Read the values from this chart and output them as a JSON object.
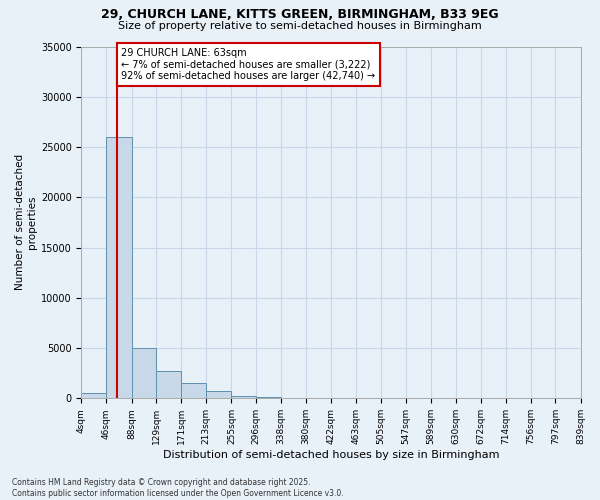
{
  "title1": "29, CHURCH LANE, KITTS GREEN, BIRMINGHAM, B33 9EG",
  "title2": "Size of property relative to semi-detached houses in Birmingham",
  "xlabel": "Distribution of semi-detached houses by size in Birmingham",
  "ylabel": "Number of semi-detached\nproperties",
  "property_label": "29 CHURCH LANE: 63sqm",
  "pct_smaller": 7,
  "pct_larger": 92,
  "n_smaller": 3222,
  "n_larger": 42740,
  "bin_edges": [
    4,
    46,
    88,
    129,
    171,
    213,
    255,
    296,
    338,
    380,
    422,
    463,
    505,
    547,
    589,
    630,
    672,
    714,
    756,
    797,
    839
  ],
  "bin_labels": [
    "4sqm",
    "46sqm",
    "88sqm",
    "129sqm",
    "171sqm",
    "213sqm",
    "255sqm",
    "296sqm",
    "338sqm",
    "380sqm",
    "422sqm",
    "463sqm",
    "505sqm",
    "547sqm",
    "589sqm",
    "630sqm",
    "672sqm",
    "714sqm",
    "756sqm",
    "797sqm",
    "839sqm"
  ],
  "bar_heights": [
    500,
    26000,
    5000,
    2700,
    1500,
    700,
    200,
    100,
    0,
    0,
    0,
    0,
    0,
    0,
    0,
    0,
    0,
    0,
    0,
    0
  ],
  "bar_color": "#c8d8e8",
  "bar_edge_color": "#6090b0",
  "vline_color": "#cc0000",
  "vline_x": 63,
  "ylim": [
    0,
    35000
  ],
  "yticks": [
    0,
    5000,
    10000,
    15000,
    20000,
    25000,
    30000,
    35000
  ],
  "grid_color": "#c8d8e8",
  "background_color": "#e8f0f8",
  "footnote": "Contains HM Land Registry data © Crown copyright and database right 2025.\nContains public sector information licensed under the Open Government Licence v3.0.",
  "annotation_box_color": "#ffffff",
  "annotation_box_edge": "#cc0000",
  "title1_fontsize": 9,
  "title2_fontsize": 8
}
